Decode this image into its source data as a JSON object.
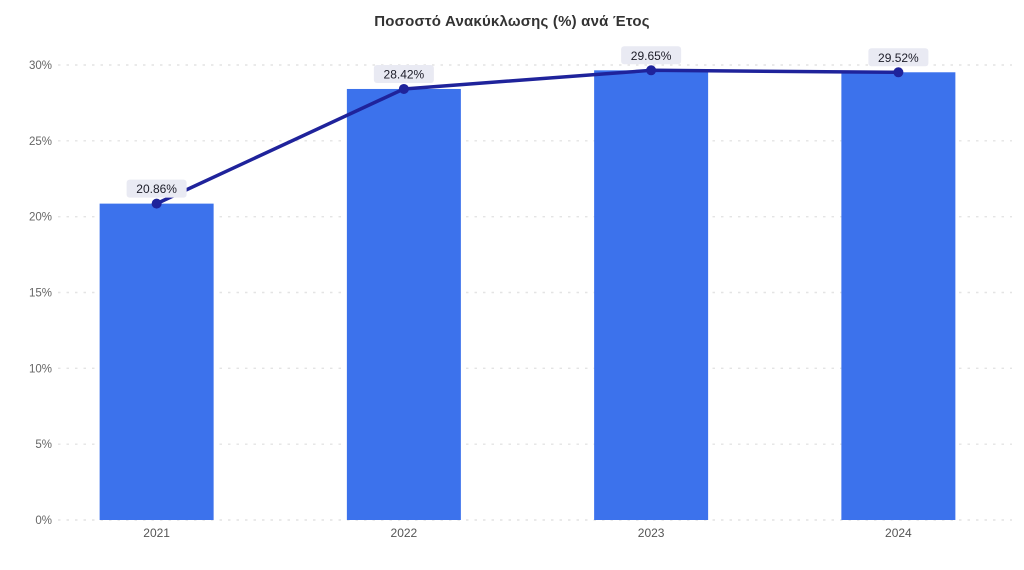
{
  "chart_data": {
    "type": "bar",
    "title": "Ποσοστό Ανακύκλωσης (%) ανά Έτος",
    "categories": [
      "2021",
      "2022",
      "2023",
      "2024"
    ],
    "series": [
      {
        "name": "bars",
        "type": "bar",
        "values": [
          20.86,
          28.42,
          29.65,
          29.52
        ]
      },
      {
        "name": "line",
        "type": "line",
        "values": [
          20.86,
          28.42,
          29.65,
          29.52
        ]
      }
    ],
    "data_labels": [
      "20.86%",
      "28.42%",
      "29.65%",
      "29.52%"
    ],
    "yticks": {
      "labels": [
        "0%",
        "5%",
        "10%",
        "15%",
        "20%",
        "25%",
        "30%"
      ],
      "values": [
        0,
        5,
        10,
        15,
        20,
        25,
        30
      ]
    },
    "ylim": [
      0,
      30
    ],
    "xlabel": "",
    "ylabel": "",
    "grid": "dotted-horizontal",
    "legend_position": "none",
    "colors": {
      "bar": "#3c72ec",
      "line": "#1f239b",
      "marker": "#1f239b",
      "label_bg": "#e9eaf3",
      "label_text": "#1c1c28",
      "grid": "#e4e4e4",
      "ytick_text": "#666666",
      "xtick_text": "#555555",
      "title_text": "#333333"
    }
  }
}
